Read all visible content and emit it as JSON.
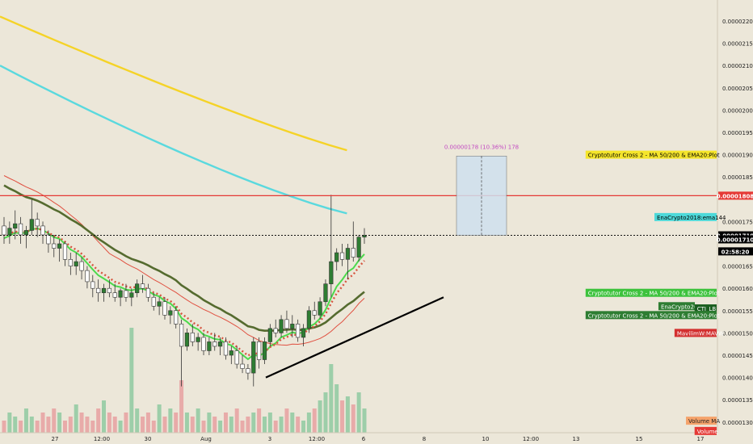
{
  "chart_data": {
    "type": "candlestick",
    "y_ticks": [
      "0.00002200",
      "0.00002150",
      "0.00002100",
      "0.00002050",
      "0.00002000",
      "0.00001950",
      "0.00001900",
      "0.00001850",
      "0.00001750",
      "0.00001650",
      "0.00001600",
      "0.00001550",
      "0.00001500",
      "0.00001450",
      "0.00001400",
      "0.00001350",
      "0.00001300"
    ],
    "y_tick_values": [
      2.2e-05,
      2.15e-05,
      2.1e-05,
      2.05e-05,
      2e-05,
      1.95e-05,
      1.9e-05,
      1.85e-05,
      1.75e-05,
      1.65e-05,
      1.6e-05,
      1.55e-05,
      1.5e-05,
      1.45e-05,
      1.4e-05,
      1.35e-05,
      1.3e-05
    ],
    "x_ticks": [
      "27",
      "12:00",
      "30",
      "Aug",
      "3",
      "12:00",
      "6",
      "8",
      "10",
      "12:00",
      "13",
      "15",
      "17"
    ],
    "price_tags": [
      {
        "text": "0.00001808",
        "value": 1.808e-05,
        "bg": "#e53935",
        "fg": "#ffffff"
      },
      {
        "text": "0.00001719",
        "value": 1.719e-05,
        "bg": "#000000",
        "fg": "#ffffff"
      },
      {
        "text": "0.00001710",
        "value": 1.71e-05,
        "bg": "#000000",
        "fg": "#ffffff"
      },
      {
        "text": "02:58:20",
        "value": 1.683e-05,
        "bg": "#000000",
        "fg": "#ffffff"
      }
    ],
    "indicator_labels": [
      {
        "text": "Cryptotutor Cross 2 - MA 50/200 & EMA20:Plot",
        "value": 1.9e-05,
        "bg": "#f5e52b",
        "fg": "#000000"
      },
      {
        "text": "EnaCrypto2018:ema144",
        "value": 1.76e-05,
        "bg": "#4dd9d9",
        "fg": "#000000"
      },
      {
        "text": "Cryptotutor Cross 2 - MA 50/200 & EMA20:Plot",
        "value": 1.59e-05,
        "bg": "#3cc23c",
        "fg": "#ffffff"
      },
      {
        "text": "EnaCrypto20",
        "value": 1.56e-05,
        "bg": "#2e7d32",
        "fg": "#ffffff"
      },
      {
        "text": "CTI_LB",
        "value": 1.555e-05,
        "bg": "#1b5e20",
        "fg": "#ffffff"
      },
      {
        "text": "Cryptotutor Cross 2 - MA 50/200 & EMA20:Plot",
        "value": 1.54e-05,
        "bg": "#2e7d32",
        "fg": "#ffffff"
      },
      {
        "text": "MavilimW:MAVW",
        "value": 1.5e-05,
        "bg": "#d32f2f",
        "fg": "#ffffff"
      },
      {
        "text": "Volume MA",
        "value": 1.303e-05,
        "bg": "#f5a26a",
        "fg": "#222222"
      },
      {
        "text": "Volume",
        "value": 1.28e-05,
        "bg": "#e53935",
        "fg": "#ffffff"
      }
    ],
    "measure_label": "0.00000178 (10.36%) 178",
    "resistance_level": 1.808e-05,
    "current_price": 1.719e-05,
    "measure_box": {
      "low": 1.719e-05,
      "high": 1.897e-05
    },
    "trendline": {
      "from": 1.4e-05,
      "to": 1.58e-05
    },
    "colors": {
      "background": "#ece7d9",
      "bull": "#2e7d32",
      "bear": "#ffffff",
      "resistance": "#e53935",
      "ema_yellow": "#f5d327",
      "ema_cyan": "#5ad9de",
      "ma_dark": "#556b2f",
      "ma_red": "#e05040",
      "ema_green": "#4cd94c",
      "measure_text": "#c248c2"
    },
    "candles": [
      [
        1.74e-05,
        1.76e-05,
        1.7e-05,
        1.72e-05
      ],
      [
        1.72e-05,
        1.75e-05,
        1.7e-05,
        1.735e-05
      ],
      [
        1.735e-05,
        1.775e-05,
        1.71e-05,
        1.745e-05
      ],
      [
        1.745e-05,
        1.76e-05,
        1.7e-05,
        1.72e-05
      ],
      [
        1.72e-05,
        1.74e-05,
        1.69e-05,
        1.73e-05
      ],
      [
        1.73e-05,
        1.8e-05,
        1.72e-05,
        1.755e-05
      ],
      [
        1.755e-05,
        1.77e-05,
        1.715e-05,
        1.74e-05
      ],
      [
        1.74e-05,
        1.75e-05,
        1.7e-05,
        1.72e-05
      ],
      [
        1.72e-05,
        1.73e-05,
        1.68e-05,
        1.7e-05
      ],
      [
        1.7e-05,
        1.72e-05,
        1.67e-05,
        1.69e-05
      ],
      [
        1.69e-05,
        1.71e-05,
        1.66e-05,
        1.7e-05
      ],
      [
        1.7e-05,
        1.705e-05,
        1.65e-05,
        1.665e-05
      ],
      [
        1.665e-05,
        1.68e-05,
        1.63e-05,
        1.65e-05
      ],
      [
        1.65e-05,
        1.68e-05,
        1.63e-05,
        1.66e-05
      ],
      [
        1.66e-05,
        1.67e-05,
        1.62e-05,
        1.64e-05
      ],
      [
        1.64e-05,
        1.65e-05,
        1.6e-05,
        1.615e-05
      ],
      [
        1.615e-05,
        1.63e-05,
        1.58e-05,
        1.6e-05
      ],
      [
        1.6e-05,
        1.62e-05,
        1.57e-05,
        1.59e-05
      ],
      [
        1.59e-05,
        1.61e-05,
        1.57e-05,
        1.6e-05
      ],
      [
        1.6e-05,
        1.62e-05,
        1.58e-05,
        1.59e-05
      ],
      [
        1.59e-05,
        1.61e-05,
        1.57e-05,
        1.58e-05
      ],
      [
        1.58e-05,
        1.6e-05,
        1.56e-05,
        1.595e-05
      ],
      [
        1.595e-05,
        1.61e-05,
        1.57e-05,
        1.58e-05
      ],
      [
        1.58e-05,
        1.6e-05,
        1.56e-05,
        1.59e-05
      ],
      [
        1.59e-05,
        1.62e-05,
        1.58e-05,
        1.61e-05
      ],
      [
        1.61e-05,
        1.63e-05,
        1.59e-05,
        1.6e-05
      ],
      [
        1.6e-05,
        1.61e-05,
        1.57e-05,
        1.58e-05
      ],
      [
        1.58e-05,
        1.59e-05,
        1.55e-05,
        1.56e-05
      ],
      [
        1.56e-05,
        1.58e-05,
        1.54e-05,
        1.57e-05
      ],
      [
        1.57e-05,
        1.58e-05,
        1.53e-05,
        1.54e-05
      ],
      [
        1.54e-05,
        1.56e-05,
        1.52e-05,
        1.55e-05
      ],
      [
        1.55e-05,
        1.56e-05,
        1.51e-05,
        1.52e-05
      ],
      [
        1.52e-05,
        1.53e-05,
        1.38e-05,
        1.47e-05
      ],
      [
        1.47e-05,
        1.51e-05,
        1.46e-05,
        1.5e-05
      ],
      [
        1.5e-05,
        1.52e-05,
        1.47e-05,
        1.48e-05
      ],
      [
        1.48e-05,
        1.5e-05,
        1.46e-05,
        1.49e-05
      ],
      [
        1.49e-05,
        1.5e-05,
        1.45e-05,
        1.46e-05
      ],
      [
        1.46e-05,
        1.49e-05,
        1.45e-05,
        1.48e-05
      ],
      [
        1.48e-05,
        1.5e-05,
        1.46e-05,
        1.47e-05
      ],
      [
        1.47e-05,
        1.49e-05,
        1.45e-05,
        1.48e-05
      ],
      [
        1.48e-05,
        1.49e-05,
        1.44e-05,
        1.45e-05
      ],
      [
        1.45e-05,
        1.47e-05,
        1.43e-05,
        1.46e-05
      ],
      [
        1.46e-05,
        1.47e-05,
        1.42e-05,
        1.43e-05
      ],
      [
        1.43e-05,
        1.45e-05,
        1.41e-05,
        1.42e-05
      ],
      [
        1.42e-05,
        1.43e-05,
        1.395e-05,
        1.41e-05
      ],
      [
        1.41e-05,
        1.49e-05,
        1.38e-05,
        1.48e-05
      ],
      [
        1.48e-05,
        1.49e-05,
        1.42e-05,
        1.44e-05
      ],
      [
        1.44e-05,
        1.49e-05,
        1.43e-05,
        1.48e-05
      ],
      [
        1.48e-05,
        1.52e-05,
        1.47e-05,
        1.51e-05
      ],
      [
        1.51e-05,
        1.53e-05,
        1.49e-05,
        1.5e-05
      ],
      [
        1.5e-05,
        1.54e-05,
        1.49e-05,
        1.53e-05
      ],
      [
        1.53e-05,
        1.55e-05,
        1.5e-05,
        1.51e-05
      ],
      [
        1.51e-05,
        1.54e-05,
        1.49e-05,
        1.52e-05
      ],
      [
        1.52e-05,
        1.53e-05,
        1.48e-05,
        1.49e-05
      ],
      [
        1.49e-05,
        1.52e-05,
        1.47e-05,
        1.51e-05
      ],
      [
        1.51e-05,
        1.56e-05,
        1.5e-05,
        1.55e-05
      ],
      [
        1.55e-05,
        1.57e-05,
        1.53e-05,
        1.54e-05
      ],
      [
        1.54e-05,
        1.58e-05,
        1.53e-05,
        1.57e-05
      ],
      [
        1.57e-05,
        1.62e-05,
        1.56e-05,
        1.61e-05
      ],
      [
        1.61e-05,
        1.81e-05,
        1.58e-05,
        1.66e-05
      ],
      [
        1.66e-05,
        1.69e-05,
        1.64e-05,
        1.68e-05
      ],
      [
        1.68e-05,
        1.7e-05,
        1.65e-05,
        1.665e-05
      ],
      [
        1.665e-05,
        1.7e-05,
        1.62e-05,
        1.69e-05
      ],
      [
        1.69e-05,
        1.75e-05,
        1.66e-05,
        1.67e-05
      ],
      [
        1.67e-05,
        1.72e-05,
        1.66e-05,
        1.715e-05
      ],
      [
        1.715e-05,
        1.735e-05,
        1.7e-05,
        1.719e-05
      ]
    ],
    "volumes": [
      0.3,
      0.5,
      0.4,
      0.3,
      0.6,
      0.4,
      0.3,
      0.5,
      0.4,
      0.6,
      0.5,
      0.3,
      0.4,
      0.7,
      0.5,
      0.4,
      0.3,
      0.6,
      0.8,
      0.5,
      0.4,
      0.3,
      0.5,
      2.6,
      0.6,
      0.4,
      0.5,
      0.3,
      0.7,
      0.4,
      0.6,
      0.5,
      1.3,
      0.5,
      0.4,
      0.6,
      0.3,
      0.5,
      0.4,
      0.3,
      0.5,
      0.4,
      0.6,
      0.3,
      0.4,
      0.5,
      0.6,
      0.4,
      0.5,
      0.3,
      0.4,
      0.6,
      0.5,
      0.4,
      0.3,
      0.5,
      0.6,
      0.8,
      1.0,
      1.7,
      1.2,
      0.8,
      0.9,
      0.7,
      1.0,
      0.6
    ]
  }
}
